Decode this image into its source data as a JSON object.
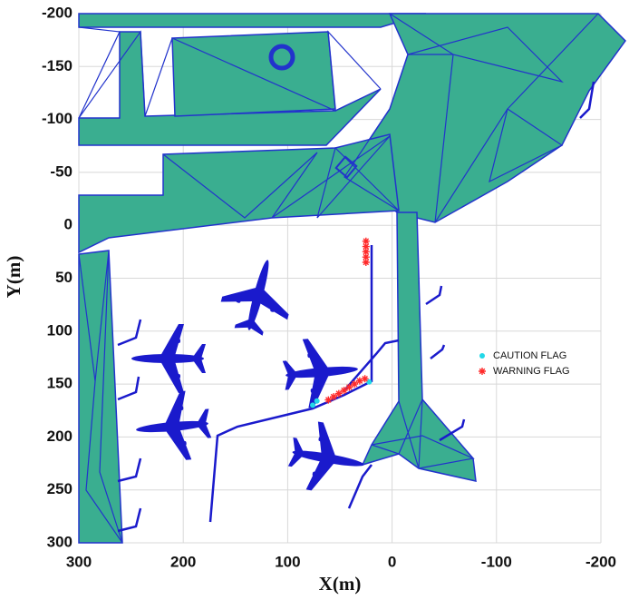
{
  "chart_data": {
    "type": "scatter",
    "x_label": "X(m)",
    "y_label": "Y(m)",
    "xlim": [
      300,
      -200
    ],
    "xticks": [
      300,
      200,
      100,
      0,
      -100,
      -200
    ],
    "ylim": [
      -200,
      300
    ],
    "yticks": [
      -200,
      -150,
      -100,
      -50,
      0,
      50,
      100,
      150,
      200,
      250,
      300
    ],
    "grid": true,
    "series": [
      {
        "name": "CAUTION FLAG",
        "color": "#22d8e8",
        "marker": "dot",
        "x": [
          76,
          72,
          22
        ],
        "y": [
          170,
          166,
          148
        ]
      },
      {
        "name": "WARNING FLAG",
        "color": "#ff2a2a",
        "marker": "star",
        "x": [
          25,
          25,
          25,
          25,
          25,
          61,
          56,
          51,
          46,
          41,
          36,
          31,
          26
        ],
        "y": [
          15,
          20,
          25,
          30,
          35,
          165,
          162,
          159,
          156,
          153,
          150,
          147,
          145
        ]
      }
    ]
  }
}
